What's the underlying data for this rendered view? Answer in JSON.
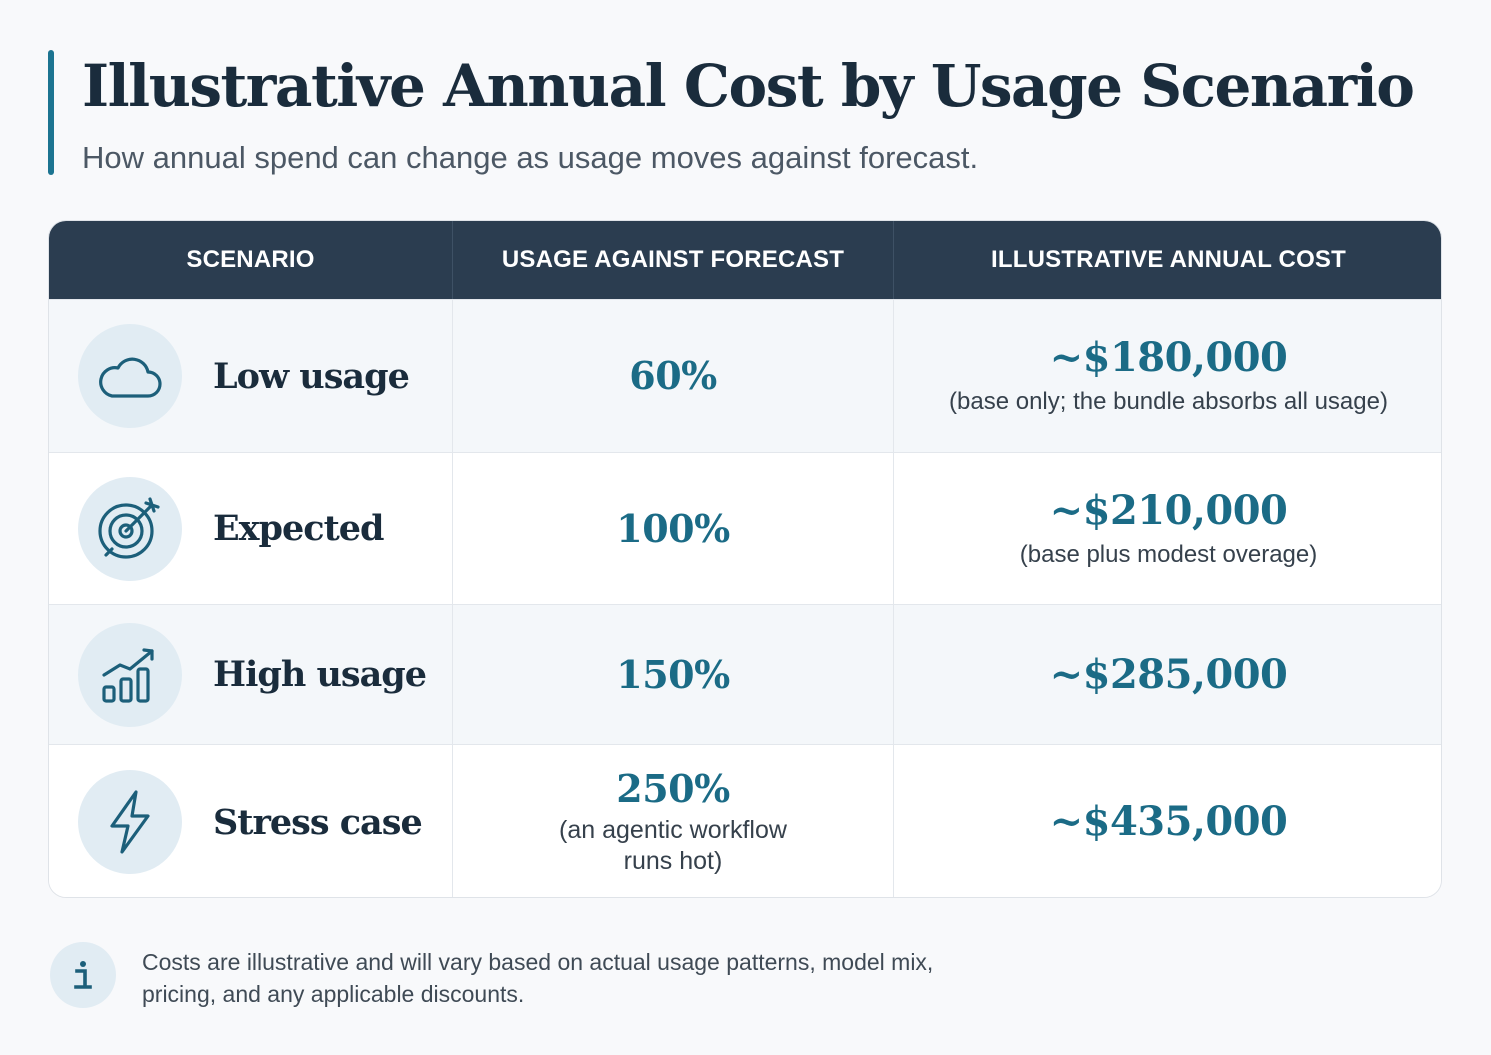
{
  "header": {
    "title": "Illustrative Annual Cost by Usage Scenario",
    "subtitle": "How annual spend can change as usage moves against forecast."
  },
  "table": {
    "columns": [
      "SCENARIO",
      "USAGE AGAINST FORECAST",
      "ILLUSTRATIVE ANNUAL COST"
    ],
    "rows": [
      {
        "icon": "cloud-icon",
        "scenario": "Low usage",
        "usage": "60%",
        "usage_note": "",
        "cost": "~$180,000",
        "cost_note": "(base only; the bundle absorbs all usage)"
      },
      {
        "icon": "target-icon",
        "scenario": "Expected",
        "usage": "100%",
        "usage_note": "",
        "cost": "~$210,000",
        "cost_note": "(base plus modest overage)"
      },
      {
        "icon": "trending-bar-chart-icon",
        "scenario": "High usage",
        "usage": "150%",
        "usage_note": "",
        "cost": "~$285,000",
        "cost_note": ""
      },
      {
        "icon": "lightning-bolt-icon",
        "scenario": "Stress case",
        "usage": "250%",
        "usage_note": "(an agentic workflow runs hot)",
        "cost": "~$435,000",
        "cost_note": ""
      }
    ]
  },
  "footnote": {
    "icon": "info-icon",
    "text": "Costs are illustrative and will vary based on actual usage patterns, model mix, pricing, and any applicable discounts."
  },
  "colors": {
    "accent": "#1c7491",
    "header_bg": "#2b3d50",
    "value_text": "#1b6b86",
    "icon_bg": "#e1ecf3",
    "title_text": "#1a2c3c"
  }
}
